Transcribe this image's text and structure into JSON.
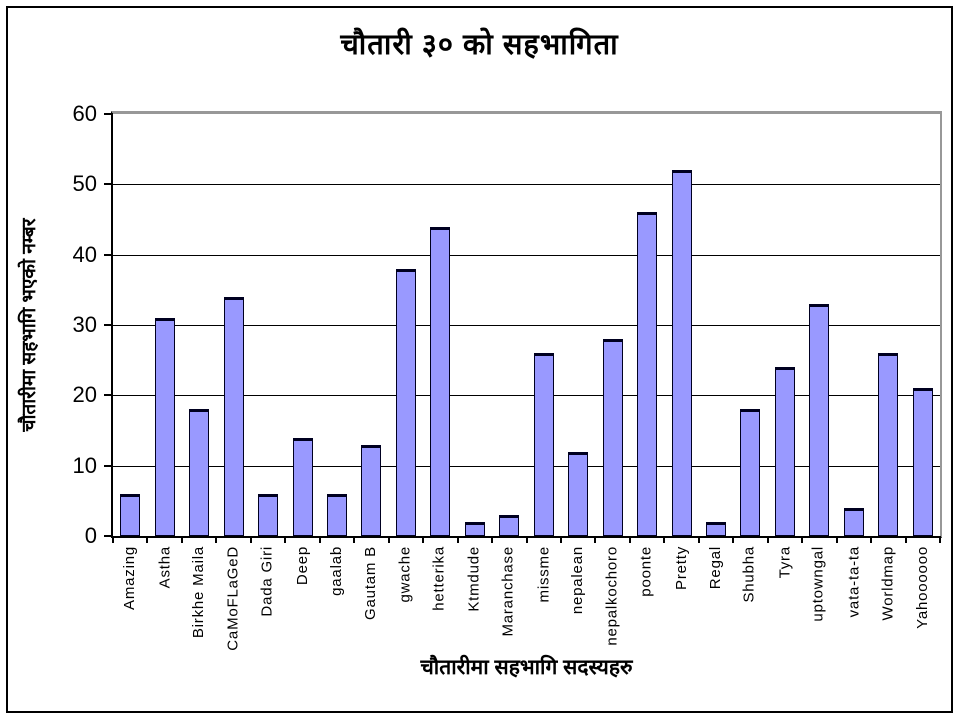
{
  "chart_data": {
    "type": "bar",
    "title": "चौतारी ३० को सहभागिता",
    "xlabel": "चौतारीमा सहभागि सदस्यहरु",
    "ylabel": "चौतारीमा सहभागि भएको नम्बर",
    "categories": [
      "Amazing",
      "Astha",
      "Birkhe Maila",
      "CaMoFLaGeD",
      "Dada Giri",
      "Deep",
      "gaalab",
      "Gautam B",
      "gwache",
      "hetterika",
      "Ktmdude",
      "Maranchase",
      "missme",
      "nepalean",
      "nepalkochoro",
      "poonte",
      "Pretty",
      "Regal",
      "Shubha",
      "Tyra",
      "uptowngal",
      "vata-ta-ta",
      "Worldmap",
      "Yahoooooo"
    ],
    "values": [
      6,
      31,
      18,
      34,
      6,
      14,
      6,
      13,
      38,
      44,
      2,
      3,
      26,
      12,
      28,
      46,
      52,
      2,
      18,
      24,
      33,
      4,
      26,
      21
    ],
    "ylim": [
      0,
      60
    ],
    "yticks": [
      0,
      10,
      20,
      30,
      40,
      50,
      60
    ],
    "grid": true,
    "legend": "none",
    "bar_color": "#9999FF",
    "bar_border_color": "#000020",
    "gridline_color": "#000000",
    "plot_border_color": "#989898",
    "axis_color": "#000000"
  }
}
